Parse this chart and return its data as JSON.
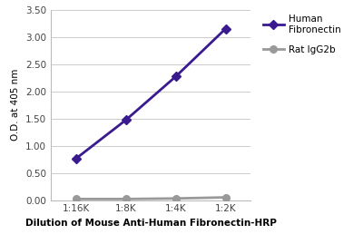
{
  "x_labels": [
    "1:16K",
    "1:8K",
    "1:4K",
    "1:2K"
  ],
  "x_positions": [
    1,
    2,
    3,
    4
  ],
  "fibronectin_values": [
    0.76,
    1.47,
    2.27,
    3.15
  ],
  "rat_igg_values": [
    0.02,
    0.02,
    0.03,
    0.05
  ],
  "fibronectin_color": "#3a1a8f",
  "rat_igg_color": "#999999",
  "fibronectin_label": "Human\nFibronectin",
  "rat_igg_label": "Rat IgG2b",
  "xlabel": "Dilution of Mouse Anti-Human Fibronectin-HRP",
  "ylabel": "O.D. at 405 nm",
  "ylim": [
    0.0,
    3.5
  ],
  "yticks": [
    0.0,
    0.5,
    1.0,
    1.5,
    2.0,
    2.5,
    3.0,
    3.5
  ],
  "bg_color": "#ffffff",
  "grid_color": "#cccccc",
  "marker_fibronectin": "D",
  "marker_rat": "o",
  "linewidth": 2.0,
  "markersize": 5.5
}
